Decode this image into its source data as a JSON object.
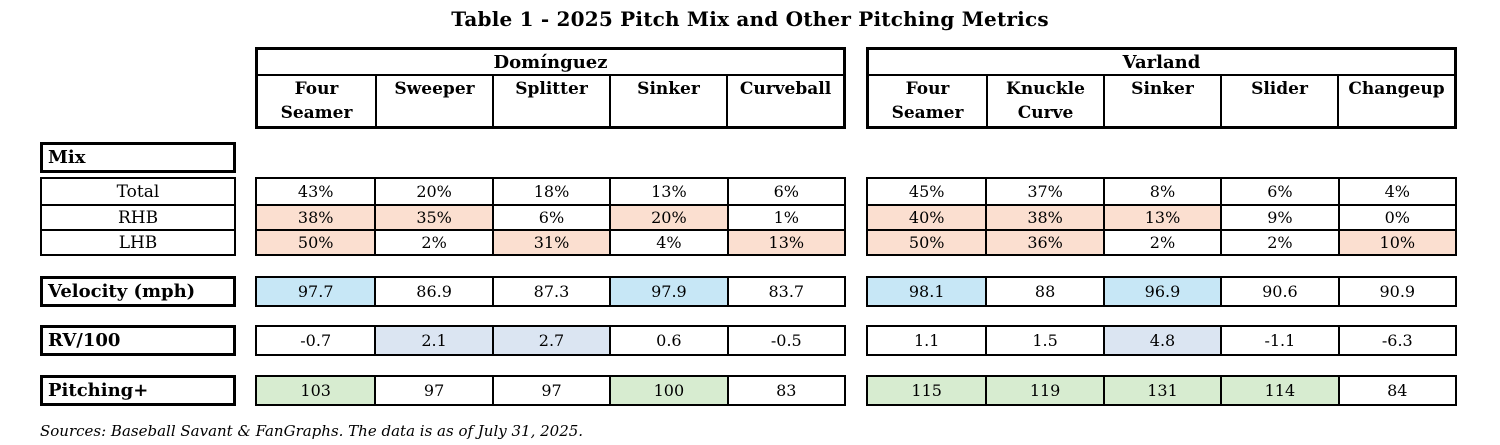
{
  "title": "Table 1 - 2025 Pitch Mix and Other Pitching Metrics",
  "labels": {
    "mix": "Mix",
    "total": "Total",
    "rhb": "RHB",
    "lhb": "LHB",
    "velocity": "Velocity (mph)",
    "rv100": "RV/100",
    "pitching_plus": "Pitching+"
  },
  "colors": {
    "mix_highlight": "#fbdfd0",
    "velocity_highlight": "#c7e7f6",
    "rv100_highlight": "#dbe5f2",
    "pitching_highlight": "#d7ecd0",
    "border": "#000000",
    "background": "#ffffff"
  },
  "source_note": "Sources: Baseball Savant & FanGraphs. The data is as of July 31, 2025.",
  "chart_data": {
    "type": "table",
    "title": "Table 1 - 2025 Pitch Mix and Other Pitching Metrics",
    "groups": [
      {
        "name": "Domínguez",
        "columns": [
          "Four Seamer",
          "Sweeper",
          "Splitter",
          "Sinker",
          "Curveball"
        ],
        "rows": [
          {
            "label": "Total",
            "section": "mix",
            "values": [
              "43%",
              "20%",
              "18%",
              "13%",
              "6%"
            ],
            "highlighted": [
              false,
              false,
              false,
              false,
              false
            ]
          },
          {
            "label": "RHB",
            "section": "mix",
            "values": [
              "38%",
              "35%",
              "6%",
              "20%",
              "1%"
            ],
            "highlighted": [
              true,
              true,
              false,
              true,
              false
            ]
          },
          {
            "label": "LHB",
            "section": "mix",
            "values": [
              "50%",
              "2%",
              "31%",
              "4%",
              "13%"
            ],
            "highlighted": [
              true,
              false,
              true,
              false,
              true
            ]
          },
          {
            "label": "Velocity (mph)",
            "section": "velocity",
            "values": [
              "97.7",
              "86.9",
              "87.3",
              "97.9",
              "83.7"
            ],
            "highlighted": [
              true,
              false,
              false,
              true,
              false
            ]
          },
          {
            "label": "RV/100",
            "section": "rv100",
            "values": [
              "-0.7",
              "2.1",
              "2.7",
              "0.6",
              "-0.5"
            ],
            "highlighted": [
              false,
              true,
              true,
              false,
              false
            ]
          },
          {
            "label": "Pitching+",
            "section": "pitching_plus",
            "values": [
              "103",
              "97",
              "97",
              "100",
              "83"
            ],
            "highlighted": [
              true,
              false,
              false,
              true,
              false
            ]
          }
        ]
      },
      {
        "name": "Varland",
        "columns": [
          "Four Seamer",
          "Knuckle Curve",
          "Sinker",
          "Slider",
          "Changeup"
        ],
        "rows": [
          {
            "label": "Total",
            "section": "mix",
            "values": [
              "45%",
              "37%",
              "8%",
              "6%",
              "4%"
            ],
            "highlighted": [
              false,
              false,
              false,
              false,
              false
            ]
          },
          {
            "label": "RHB",
            "section": "mix",
            "values": [
              "40%",
              "38%",
              "13%",
              "9%",
              "0%"
            ],
            "highlighted": [
              true,
              true,
              true,
              false,
              false
            ]
          },
          {
            "label": "LHB",
            "section": "mix",
            "values": [
              "50%",
              "36%",
              "2%",
              "2%",
              "10%"
            ],
            "highlighted": [
              true,
              true,
              false,
              false,
              true
            ]
          },
          {
            "label": "Velocity (mph)",
            "section": "velocity",
            "values": [
              "98.1",
              "88",
              "96.9",
              "90.6",
              "90.9"
            ],
            "highlighted": [
              true,
              false,
              true,
              false,
              false
            ]
          },
          {
            "label": "RV/100",
            "section": "rv100",
            "values": [
              "1.1",
              "1.5",
              "4.8",
              "-1.1",
              "-6.3"
            ],
            "highlighted": [
              false,
              false,
              true,
              false,
              false
            ]
          },
          {
            "label": "Pitching+",
            "section": "pitching_plus",
            "values": [
              "115",
              "119",
              "131",
              "114",
              "84"
            ],
            "highlighted": [
              true,
              true,
              true,
              true,
              false
            ]
          }
        ]
      }
    ]
  }
}
